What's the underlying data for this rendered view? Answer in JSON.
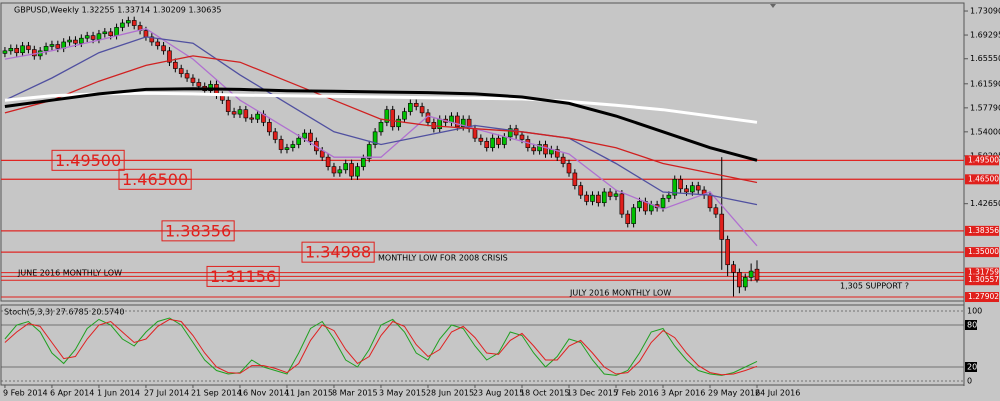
{
  "chart_data": {
    "type": "candlestick",
    "title": "GBPUSD,Weekly  1.32255 1.33714 1.30209 1.30635",
    "up_color": "#00c000",
    "down_color": "#e0201c",
    "level_color": "#e0201c",
    "xlim": [
      -0.5,
      163.4
    ],
    "ylim": [
      1.2743,
      1.742
    ],
    "xticks": [
      {
        "value": 0,
        "label": "9 Feb 2014"
      },
      {
        "value": 8,
        "label": "6 Apr 2014"
      },
      {
        "value": 16,
        "label": "1 Jun 2014"
      },
      {
        "value": 24,
        "label": "27 Jul 2014"
      },
      {
        "value": 32,
        "label": "21 Sep 2014"
      },
      {
        "value": 40,
        "label": "16 Nov 2014"
      },
      {
        "value": 48,
        "label": "11 Jan 2015"
      },
      {
        "value": 56,
        "label": "8 Mar 2015"
      },
      {
        "value": 64,
        "label": "3 May 2015"
      },
      {
        "value": 72,
        "label": "28 Jun 2015"
      },
      {
        "value": 80,
        "label": "23 Aug 2015"
      },
      {
        "value": 88,
        "label": "18 Oct 2015"
      },
      {
        "value": 96,
        "label": "13 Dec 2015"
      },
      {
        "value": 104,
        "label": "7 Feb 2016"
      },
      {
        "value": 112,
        "label": "3 Apr 2016"
      },
      {
        "value": 120,
        "label": "29 May 2016"
      },
      {
        "value": 128,
        "label": "24 Jul 2016"
      }
    ],
    "yticks": [
      {
        "value": 1.7309,
        "label": "1.73090"
      },
      {
        "value": 1.69295,
        "label": "1.69295"
      },
      {
        "value": 1.6555,
        "label": "1.65550"
      },
      {
        "value": 1.6159,
        "label": "1.61590"
      },
      {
        "value": 1.5779,
        "label": "1.57790"
      },
      {
        "value": 1.54,
        "label": "1.54000"
      },
      {
        "value": 1.50205,
        "label": "1.50205"
      },
      {
        "value": 1.4265,
        "label": "1.42650"
      }
    ],
    "open": [
      1.664,
      1.668,
      1.672,
      1.665,
      1.676,
      1.67,
      1.66,
      1.668,
      1.675,
      1.678,
      1.672,
      1.682,
      1.685,
      1.68,
      1.688,
      1.692,
      1.686,
      1.695,
      1.698,
      1.692,
      1.705,
      1.712,
      1.716,
      1.708,
      1.7,
      1.69,
      1.682,
      1.676,
      1.668,
      1.65,
      1.64,
      1.632,
      1.625,
      1.618,
      1.612,
      1.605,
      1.615,
      1.598,
      1.59,
      1.572,
      1.568,
      1.575,
      1.562,
      1.56,
      1.568,
      1.555,
      1.54,
      1.528,
      1.512,
      1.515,
      1.52,
      1.53,
      1.538,
      1.525,
      1.51,
      1.5,
      1.485,
      1.475,
      1.48,
      1.49,
      1.47,
      1.485,
      1.498,
      1.52,
      1.54,
      1.555,
      1.575,
      1.548,
      1.56,
      1.572,
      1.585,
      1.58,
      1.57,
      1.555,
      1.545,
      1.56,
      1.555,
      1.565,
      1.548,
      1.56,
      1.545,
      1.53,
      1.525,
      1.515,
      1.53,
      1.52,
      1.532,
      1.545,
      1.535,
      1.528,
      1.515,
      1.51,
      1.52,
      1.505,
      1.512,
      1.5,
      1.49,
      1.475,
      1.455,
      1.44,
      1.43,
      1.44,
      1.428,
      1.445,
      1.438,
      1.442,
      1.41,
      1.395,
      1.42,
      1.43,
      1.415,
      1.425,
      1.42,
      1.435,
      1.44,
      1.465,
      1.45,
      1.445,
      1.455,
      1.448,
      1.44,
      1.42,
      1.41,
      1.37,
      1.33,
      1.318,
      1.295,
      1.31,
      1.323
    ],
    "high": [
      1.674,
      1.678,
      1.678,
      1.682,
      1.682,
      1.676,
      1.674,
      1.681,
      1.684,
      1.684,
      1.688,
      1.691,
      1.691,
      1.694,
      1.698,
      1.698,
      1.701,
      1.704,
      1.704,
      1.711,
      1.718,
      1.722,
      1.722,
      1.714,
      1.706,
      1.696,
      1.688,
      1.682,
      1.674,
      1.656,
      1.646,
      1.638,
      1.631,
      1.624,
      1.618,
      1.621,
      1.621,
      1.604,
      1.596,
      1.578,
      1.581,
      1.581,
      1.568,
      1.574,
      1.574,
      1.561,
      1.546,
      1.534,
      1.521,
      1.526,
      1.536,
      1.544,
      1.544,
      1.531,
      1.516,
      1.506,
      1.491,
      1.486,
      1.496,
      1.496,
      1.491,
      1.504,
      1.526,
      1.546,
      1.561,
      1.581,
      1.581,
      1.566,
      1.578,
      1.591,
      1.591,
      1.586,
      1.576,
      1.561,
      1.566,
      1.566,
      1.571,
      1.571,
      1.566,
      1.566,
      1.551,
      1.536,
      1.531,
      1.536,
      1.536,
      1.538,
      1.551,
      1.551,
      1.541,
      1.534,
      1.521,
      1.526,
      1.526,
      1.518,
      1.518,
      1.506,
      1.496,
      1.481,
      1.461,
      1.446,
      1.446,
      1.446,
      1.451,
      1.451,
      1.448,
      1.448,
      1.416,
      1.426,
      1.436,
      1.436,
      1.431,
      1.431,
      1.441,
      1.446,
      1.471,
      1.471,
      1.456,
      1.461,
      1.461,
      1.454,
      1.446,
      1.426,
      1.5,
      1.376,
      1.336,
      1.324,
      1.316,
      1.332,
      1.337
    ],
    "low": [
      1.658,
      1.662,
      1.659,
      1.659,
      1.664,
      1.654,
      1.654,
      1.662,
      1.669,
      1.666,
      1.666,
      1.676,
      1.674,
      1.674,
      1.682,
      1.68,
      1.68,
      1.689,
      1.686,
      1.686,
      1.699,
      1.706,
      1.702,
      1.694,
      1.684,
      1.676,
      1.67,
      1.662,
      1.644,
      1.634,
      1.626,
      1.619,
      1.612,
      1.606,
      1.599,
      1.599,
      1.592,
      1.584,
      1.566,
      1.562,
      1.562,
      1.556,
      1.554,
      1.554,
      1.549,
      1.534,
      1.522,
      1.506,
      1.506,
      1.509,
      1.514,
      1.524,
      1.519,
      1.504,
      1.494,
      1.479,
      1.469,
      1.469,
      1.474,
      1.464,
      1.464,
      1.479,
      1.492,
      1.514,
      1.534,
      1.549,
      1.542,
      1.542,
      1.554,
      1.566,
      1.574,
      1.564,
      1.549,
      1.539,
      1.539,
      1.549,
      1.549,
      1.542,
      1.542,
      1.539,
      1.524,
      1.519,
      1.509,
      1.509,
      1.514,
      1.514,
      1.526,
      1.529,
      1.522,
      1.509,
      1.504,
      1.504,
      1.499,
      1.499,
      1.494,
      1.484,
      1.469,
      1.449,
      1.434,
      1.424,
      1.424,
      1.422,
      1.422,
      1.432,
      1.432,
      1.404,
      1.389,
      1.389,
      1.414,
      1.409,
      1.409,
      1.414,
      1.414,
      1.429,
      1.434,
      1.444,
      1.439,
      1.439,
      1.442,
      1.434,
      1.414,
      1.404,
      1.322,
      1.312,
      1.28,
      1.285,
      1.289,
      1.304,
      1.302
    ],
    "close": [
      1.668,
      1.672,
      1.665,
      1.676,
      1.67,
      1.66,
      1.668,
      1.675,
      1.678,
      1.672,
      1.682,
      1.685,
      1.68,
      1.688,
      1.692,
      1.686,
      1.695,
      1.698,
      1.692,
      1.705,
      1.712,
      1.716,
      1.708,
      1.7,
      1.69,
      1.682,
      1.676,
      1.668,
      1.65,
      1.64,
      1.632,
      1.625,
      1.618,
      1.612,
      1.605,
      1.615,
      1.598,
      1.59,
      1.572,
      1.568,
      1.575,
      1.562,
      1.56,
      1.568,
      1.555,
      1.54,
      1.528,
      1.512,
      1.515,
      1.52,
      1.53,
      1.538,
      1.525,
      1.51,
      1.5,
      1.485,
      1.475,
      1.48,
      1.49,
      1.47,
      1.485,
      1.498,
      1.52,
      1.54,
      1.555,
      1.575,
      1.548,
      1.56,
      1.572,
      1.585,
      1.58,
      1.57,
      1.555,
      1.545,
      1.56,
      1.555,
      1.565,
      1.548,
      1.56,
      1.545,
      1.53,
      1.525,
      1.515,
      1.53,
      1.52,
      1.532,
      1.545,
      1.535,
      1.528,
      1.515,
      1.51,
      1.52,
      1.505,
      1.512,
      1.5,
      1.49,
      1.475,
      1.455,
      1.44,
      1.43,
      1.44,
      1.428,
      1.445,
      1.438,
      1.442,
      1.41,
      1.395,
      1.42,
      1.43,
      1.415,
      1.425,
      1.42,
      1.435,
      1.44,
      1.465,
      1.45,
      1.445,
      1.455,
      1.448,
      1.44,
      1.42,
      1.41,
      1.37,
      1.33,
      1.318,
      1.295,
      1.31,
      1.32,
      1.306
    ],
    "lines": [
      {
        "color": "#b070d0",
        "x": [
          0,
          8,
          16,
          24,
          32,
          40,
          48,
          56,
          64,
          72,
          80,
          88,
          96,
          104,
          112,
          120,
          128
        ],
        "values": [
          1.655,
          1.668,
          1.685,
          1.703,
          1.655,
          1.59,
          1.545,
          1.5,
          1.5,
          1.565,
          1.545,
          1.525,
          1.505,
          1.448,
          1.418,
          1.445,
          1.36
        ]
      },
      {
        "color": "#5050a0",
        "x": [
          0,
          8,
          16,
          24,
          32,
          40,
          48,
          56,
          64,
          72,
          80,
          88,
          96,
          104,
          112,
          120,
          128
        ],
        "values": [
          1.59,
          1.625,
          1.665,
          1.69,
          1.68,
          1.63,
          1.585,
          1.54,
          1.52,
          1.535,
          1.55,
          1.54,
          1.53,
          1.49,
          1.445,
          1.44,
          1.425
        ]
      },
      {
        "color": "#d02020",
        "x": [
          0,
          8,
          16,
          24,
          32,
          40,
          48,
          56,
          64,
          72,
          80,
          88,
          96,
          104,
          112,
          120,
          128
        ],
        "values": [
          1.57,
          1.59,
          1.62,
          1.645,
          1.66,
          1.65,
          1.62,
          1.59,
          1.56,
          1.55,
          1.545,
          1.54,
          1.53,
          1.515,
          1.49,
          1.475,
          1.46
        ]
      },
      {
        "color": "#ffffff",
        "x": [
          0,
          8,
          16,
          24,
          32,
          40,
          48,
          56,
          64,
          72,
          80,
          88,
          96,
          104,
          112,
          120,
          128
        ],
        "values": [
          1.59,
          1.597,
          1.6,
          1.601,
          1.6,
          1.598,
          1.597,
          1.596,
          1.595,
          1.594,
          1.593,
          1.592,
          1.588,
          1.582,
          1.575,
          1.565,
          1.555
        ]
      },
      {
        "color": "#000000",
        "x": [
          0,
          8,
          16,
          24,
          32,
          40,
          48,
          56,
          64,
          72,
          80,
          88,
          96,
          104,
          112,
          120,
          128
        ],
        "values": [
          1.58,
          1.59,
          1.6,
          1.607,
          1.608,
          1.607,
          1.605,
          1.604,
          1.603,
          1.602,
          1.6,
          1.595,
          1.585,
          1.565,
          1.54,
          1.515,
          1.495
        ]
      }
    ],
    "levels": [
      {
        "value": 1.495,
        "label": "1.49500"
      },
      {
        "value": 1.465,
        "label": "1.46500"
      },
      {
        "value": 1.38356,
        "label": "1.38356"
      },
      {
        "value": 1.34988,
        "label": "1.34988"
      },
      {
        "value": 1.31156,
        "label": "1.31156"
      }
    ],
    "axis_markers": [
      {
        "value": 1.495,
        "label": "1.49500"
      },
      {
        "value": 1.465,
        "label": "1.46500"
      },
      {
        "value": 1.38356,
        "label": "1.38356"
      },
      {
        "value": 1.35,
        "label": "1.35000"
      },
      {
        "value": 1.31759,
        "label": "1.31759"
      },
      {
        "value": 1.30557,
        "label": "1.30557"
      },
      {
        "value": 1.27902,
        "label": "1.27902"
      }
    ],
    "annotations": [
      "MONTHLY LOW FOR 2008 CRISIS",
      "JUNE 2016 MONTHLY LOW",
      "JULY 2016 MONTHLY LOW",
      "1,305 SUPPORT ?"
    ],
    "stoch": {
      "title": "Stoch(5,3,3) 27.6785 20.5740",
      "ylim": [
        0,
        100
      ],
      "yticks": [
        100,
        80,
        20,
        0
      ],
      "x": [
        0,
        2,
        4,
        6,
        8,
        10,
        12,
        14,
        16,
        18,
        20,
        22,
        24,
        26,
        28,
        30,
        32,
        34,
        36,
        38,
        40,
        42,
        44,
        46,
        48,
        50,
        52,
        54,
        56,
        58,
        60,
        62,
        64,
        66,
        68,
        70,
        72,
        74,
        76,
        78,
        80,
        82,
        84,
        86,
        88,
        90,
        92,
        94,
        96,
        98,
        100,
        102,
        104,
        106,
        108,
        110,
        112,
        114,
        116,
        118,
        120,
        122,
        124,
        126,
        128
      ],
      "series": [
        {
          "color": "#20a020",
          "values": [
            60,
            80,
            85,
            70,
            40,
            25,
            45,
            75,
            88,
            80,
            60,
            50,
            70,
            85,
            90,
            80,
            55,
            30,
            15,
            10,
            12,
            30,
            20,
            15,
            10,
            40,
            75,
            85,
            60,
            30,
            20,
            45,
            80,
            88,
            70,
            40,
            30,
            60,
            80,
            75,
            50,
            30,
            40,
            70,
            65,
            40,
            20,
            35,
            60,
            55,
            30,
            10,
            8,
            15,
            40,
            70,
            75,
            50,
            30,
            15,
            10,
            8,
            12,
            20,
            28
          ]
        },
        {
          "color": "#e02020",
          "values": [
            55,
            70,
            82,
            78,
            55,
            32,
            35,
            60,
            80,
            85,
            70,
            55,
            60,
            78,
            88,
            85,
            65,
            40,
            20,
            12,
            11,
            22,
            22,
            18,
            12,
            25,
            58,
            80,
            72,
            45,
            25,
            35,
            65,
            85,
            78,
            52,
            35,
            45,
            70,
            78,
            62,
            40,
            38,
            58,
            68,
            50,
            30,
            30,
            50,
            58,
            40,
            20,
            10,
            12,
            28,
            55,
            72,
            62,
            40,
            22,
            12,
            9,
            10,
            15,
            21
          ]
        }
      ]
    }
  }
}
